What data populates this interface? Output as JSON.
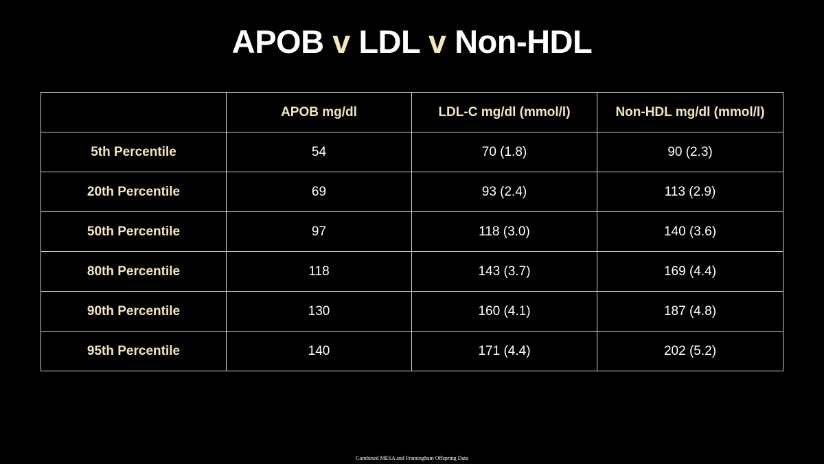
{
  "title": {
    "part1": "APOB ",
    "sep1": "v",
    "part2": " LDL ",
    "sep2": "v",
    "part3": " Non-HDL"
  },
  "colors": {
    "background": "#000000",
    "text": "#ffffff",
    "accent": "#f5e6b8",
    "grid": "#d4d4d4"
  },
  "table": {
    "headers": [
      "",
      "APOB mg/dl",
      "LDL-C mg/dl (mmol/l)",
      "Non-HDL mg/dl (mmol/l)"
    ],
    "rows": [
      {
        "label": "5th Percentile",
        "apob": "54",
        "ldl": "70 (1.8)",
        "nonhdl": "90 (2.3)"
      },
      {
        "label": "20th Percentile",
        "apob": "69",
        "ldl": "93 (2.4)",
        "nonhdl": "113 (2.9)"
      },
      {
        "label": "50th Percentile",
        "apob": "97",
        "ldl": "118 (3.0)",
        "nonhdl": "140 (3.6)"
      },
      {
        "label": "80th Percentile",
        "apob": "118",
        "ldl": "143 (3.7)",
        "nonhdl": "169 (4.4)"
      },
      {
        "label": "90th Percentile",
        "apob": "130",
        "ldl": "160 (4.1)",
        "nonhdl": "187 (4.8)"
      },
      {
        "label": "95th Percentile",
        "apob": "140",
        "ldl": "171 (4.4)",
        "nonhdl": "202 (5.2)"
      }
    ]
  },
  "footnote": "Combined MESA and Framingham Offspring Data"
}
